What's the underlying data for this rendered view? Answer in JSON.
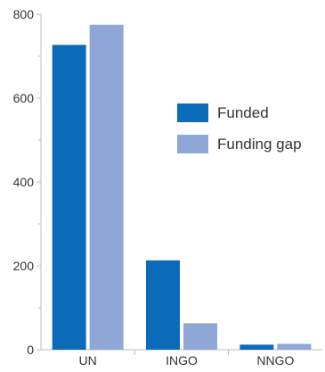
{
  "chart_data": {
    "type": "bar",
    "title": "",
    "xlabel": "",
    "ylabel": "",
    "categories": [
      "UN",
      "INGO",
      "NNGO"
    ],
    "series": [
      {
        "name": "Funded",
        "values": [
          727,
          213,
          12
        ],
        "color": "#0b6bb8"
      },
      {
        "name": "Funding gap",
        "values": [
          775,
          63,
          14
        ],
        "color": "#8fa7d6"
      }
    ],
    "ylim": [
      0,
      800
    ],
    "yticks": [
      0,
      200,
      400,
      600,
      800
    ],
    "grid": false,
    "legend_position": "right, inside plot"
  },
  "colors": {
    "axis": "#bdbdbd",
    "tick_text": "#333333"
  }
}
